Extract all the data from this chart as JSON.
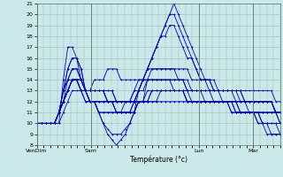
{
  "title": "",
  "xlabel": "Température (°c)",
  "bg_color": "#cce8e8",
  "plot_bg_color": "#cce8e8",
  "line_color": "#0000bb",
  "ylim": [
    8,
    21
  ],
  "yticks": [
    8,
    9,
    10,
    11,
    12,
    13,
    14,
    15,
    16,
    17,
    18,
    19,
    20,
    21
  ],
  "xtick_labels": [
    "VenDim",
    "Sam",
    "Lun",
    "Mar"
  ],
  "xtick_positions": [
    0,
    24,
    72,
    96
  ],
  "total_hours": 108,
  "series": [
    [
      10,
      10,
      10,
      10,
      10,
      10,
      14,
      17,
      17,
      16,
      14,
      13,
      13,
      14,
      14,
      14,
      15,
      15,
      15,
      14,
      14,
      14,
      14,
      14,
      14,
      14,
      14,
      14,
      14,
      14,
      14,
      13,
      13,
      13,
      13,
      13,
      13,
      13,
      13,
      13,
      13,
      13,
      12,
      12,
      12,
      12,
      12,
      12,
      12,
      12,
      12,
      12,
      12,
      12,
      11,
      11
    ],
    [
      10,
      10,
      10,
      10,
      10,
      11,
      13,
      15,
      16,
      16,
      15,
      13,
      12,
      12,
      11,
      10,
      9,
      8.5,
      8,
      8.5,
      9,
      10,
      11,
      13,
      14,
      15,
      16,
      17,
      18,
      19,
      20,
      21,
      20,
      19,
      18,
      17,
      16,
      15,
      14,
      14,
      14,
      13,
      13,
      13,
      13,
      12,
      12,
      12,
      12,
      12,
      12,
      12,
      12,
      12,
      11,
      11
    ],
    [
      10,
      10,
      10,
      10,
      10,
      11,
      13,
      14,
      15,
      15,
      14,
      13,
      13,
      13,
      13,
      13,
      12,
      12,
      11,
      11,
      11,
      11,
      12,
      13,
      14,
      15,
      16,
      17,
      18,
      19,
      20,
      20,
      19,
      18,
      17,
      16,
      15,
      14,
      14,
      14,
      13,
      13,
      13,
      13,
      13,
      13,
      13,
      13,
      13,
      13,
      13,
      13,
      13,
      13,
      12,
      12
    ],
    [
      10,
      10,
      10,
      10,
      10,
      11,
      13,
      14,
      15,
      15,
      14,
      13,
      13,
      13,
      13,
      13,
      12,
      12,
      11,
      11,
      11,
      11,
      12,
      13,
      14,
      15,
      16,
      17,
      18,
      18,
      19,
      19,
      18,
      17,
      16,
      16,
      15,
      14,
      14,
      13,
      13,
      13,
      13,
      13,
      13,
      13,
      13,
      12,
      12,
      12,
      12,
      12,
      12,
      12,
      11,
      11
    ],
    [
      10,
      10,
      10,
      10,
      10,
      11,
      12,
      14,
      14,
      14,
      13,
      13,
      13,
      13,
      13,
      13,
      13,
      13,
      12,
      12,
      12,
      12,
      13,
      14,
      14,
      15,
      15,
      15,
      15,
      15,
      15,
      15,
      15,
      15,
      15,
      14,
      14,
      14,
      14,
      14,
      13,
      13,
      13,
      13,
      13,
      13,
      12,
      12,
      12,
      12,
      12,
      12,
      12,
      12,
      11,
      11
    ],
    [
      10,
      10,
      10,
      10,
      10,
      11,
      12,
      13,
      14,
      14,
      14,
      13,
      13,
      13,
      13,
      13,
      13,
      13,
      12,
      12,
      12,
      12,
      13,
      13,
      14,
      14,
      14,
      14,
      14,
      14,
      14,
      14,
      14,
      14,
      14,
      13,
      13,
      13,
      13,
      13,
      13,
      13,
      13,
      13,
      13,
      13,
      13,
      12,
      12,
      12,
      12,
      12,
      12,
      12,
      11,
      11
    ],
    [
      10,
      10,
      10,
      10,
      10,
      11,
      12,
      13,
      14,
      14,
      13,
      13,
      12,
      12,
      12,
      12,
      12,
      12,
      12,
      12,
      12,
      12,
      12,
      12,
      12,
      12,
      12,
      12,
      12,
      12,
      12,
      12,
      12,
      12,
      12,
      12,
      12,
      12,
      12,
      12,
      12,
      12,
      12,
      12,
      11,
      11,
      11,
      11,
      11,
      11,
      11,
      11,
      11,
      11,
      11,
      11
    ],
    [
      10,
      10,
      10,
      10,
      10,
      11,
      13,
      15,
      16,
      16,
      15,
      13,
      12,
      12,
      11,
      10,
      9.5,
      9,
      9,
      9,
      9.5,
      10,
      11,
      12,
      12,
      12,
      13,
      13,
      13,
      13,
      13,
      13,
      13,
      13,
      13,
      12,
      12,
      12,
      12,
      12,
      12,
      12,
      12,
      12,
      11,
      11,
      11,
      11,
      11,
      11,
      11,
      11,
      11,
      11,
      11,
      10
    ],
    [
      10,
      10,
      10,
      10,
      10,
      11,
      12,
      13,
      14,
      14,
      14,
      13,
      13,
      13,
      13,
      13,
      12,
      12,
      12,
      12,
      12,
      12,
      12,
      12,
      12,
      14,
      15,
      15,
      15,
      15,
      15,
      15,
      14,
      14,
      13,
      13,
      13,
      13,
      12,
      12,
      12,
      12,
      12,
      12,
      12,
      12,
      11,
      11,
      11,
      11,
      11,
      10,
      10,
      10,
      10,
      10
    ],
    [
      10,
      10,
      10,
      10,
      10,
      11,
      12,
      13,
      14,
      14,
      14,
      13,
      12,
      12,
      11,
      11,
      11,
      11,
      11,
      11,
      11,
      11,
      11,
      12,
      12,
      12,
      13,
      13,
      13,
      13,
      13,
      13,
      13,
      13,
      12,
      12,
      12,
      12,
      12,
      12,
      12,
      12,
      12,
      12,
      12,
      12,
      12,
      12,
      11,
      11,
      11,
      10,
      10,
      10,
      10,
      9
    ],
    [
      10,
      10,
      10,
      10,
      10,
      11,
      12,
      13,
      14,
      14,
      13,
      12,
      12,
      12,
      11,
      11,
      11,
      11,
      11,
      11,
      11,
      11,
      11,
      12,
      12,
      12,
      12,
      12,
      13,
      13,
      13,
      13,
      13,
      13,
      12,
      12,
      12,
      12,
      12,
      12,
      12,
      12,
      12,
      12,
      12,
      11,
      11,
      11,
      11,
      11,
      10,
      10,
      10,
      9,
      9,
      9
    ],
    [
      10,
      10,
      10,
      10,
      10,
      10,
      11,
      12,
      13,
      13,
      13,
      12,
      12,
      12,
      12,
      12,
      12,
      12,
      12,
      12,
      12,
      12,
      12,
      12,
      12,
      13,
      13,
      13,
      13,
      13,
      13,
      13,
      13,
      13,
      12,
      12,
      12,
      12,
      12,
      12,
      12,
      12,
      12,
      12,
      12,
      11,
      11,
      11,
      11,
      11,
      10,
      10,
      9,
      9,
      9,
      9
    ],
    [
      10,
      10,
      10,
      10,
      10,
      11,
      12,
      13,
      14,
      14,
      13,
      13,
      12,
      12,
      12,
      12,
      12,
      12,
      11,
      11,
      12,
      12,
      12,
      13,
      13,
      14,
      14,
      14,
      14,
      14,
      14,
      14,
      14,
      14,
      13,
      13,
      13,
      13,
      13,
      13,
      12,
      12,
      12,
      12,
      12,
      12,
      11,
      11,
      11,
      11,
      11,
      11,
      11,
      11,
      11,
      10
    ]
  ]
}
